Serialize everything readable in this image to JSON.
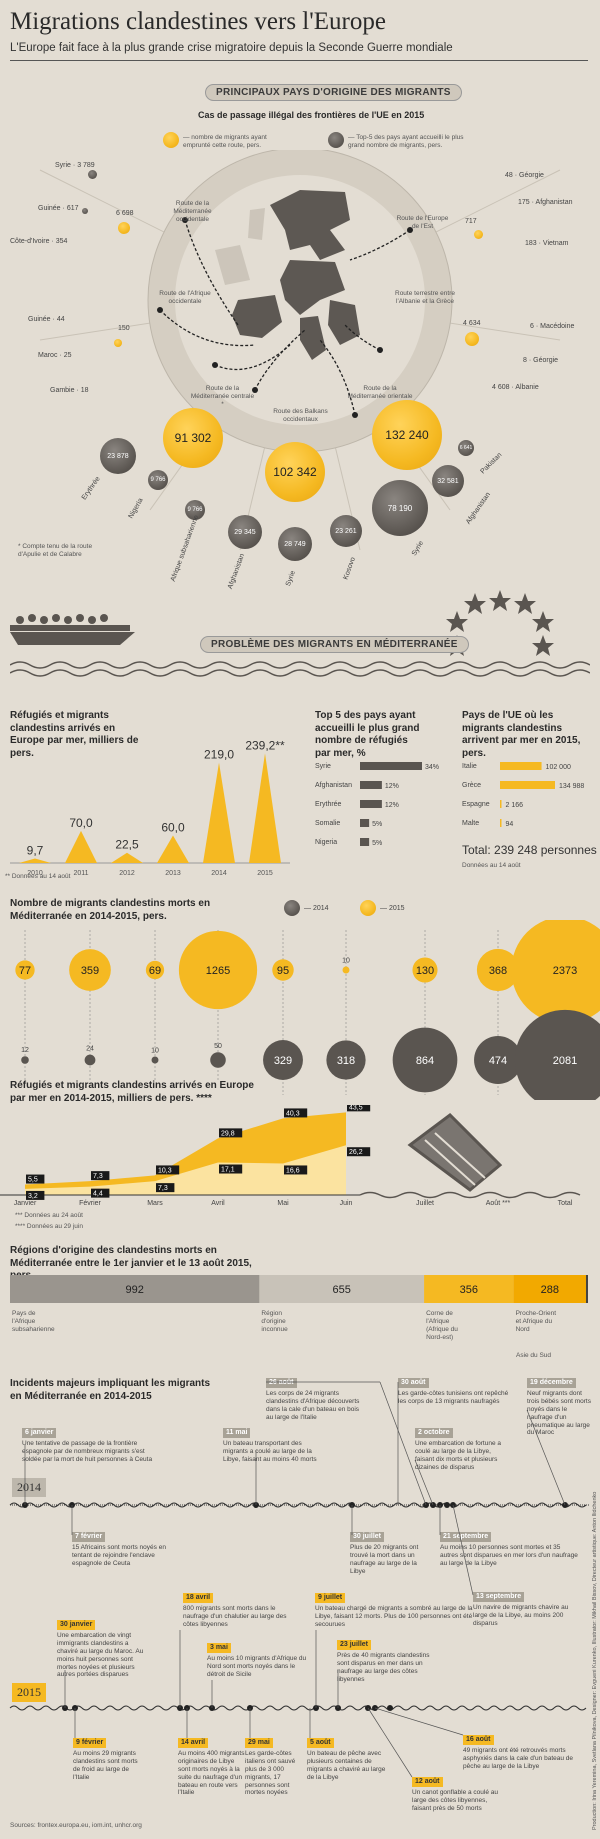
{
  "header": {
    "title": "Migrations clandestines vers l'Europe",
    "subtitle": "L'Europe fait face à la plus grande crise migratoire depuis la Seconde Guerre mondiale"
  },
  "origin": {
    "pill": "PRINCIPAUX PAYS D'ORIGINE DES MIGRANTS",
    "heading": "Cas de passage illégal des frontières de l'UE en 2015",
    "legend_yellow": "— nombre de migrants ayant emprunté cette route, pers.",
    "legend_grey": "— Top-5 des pays ayant accueilli le plus grand nombre de migrants, pers.",
    "footnote": "* Compte tenu de la route d'Apulie et de Calabre",
    "routes": {
      "r1": "Route de la Méditerranée occidentale",
      "r2": "Route de l'Afrique occidentale",
      "r3": "Route de la Méditerranée centrale *",
      "r4": "Route des Balkans occidentaux",
      "r5": "Route de la Méditerranée orientale",
      "r6": "Route terrestre entre l'Albanie et la Grèce",
      "r7": "Route de l'Europe de l'Est"
    },
    "left_countries": [
      {
        "name": "Syrie",
        "value": "3 789"
      },
      {
        "name": "Guinée",
        "value": "617"
      },
      {
        "name": "Côte-d'Ivoire",
        "value": "354"
      },
      {
        "name": "Guinée",
        "value": "44"
      },
      {
        "name": "Maroc",
        "value": "25"
      },
      {
        "name": "Gambie",
        "value": "18"
      }
    ],
    "left_totals": [
      "6 698",
      "150"
    ],
    "right_countries": [
      {
        "name": "Géorgie",
        "value": "48"
      },
      {
        "name": "Afghanistan",
        "value": "175"
      },
      {
        "name": "Vietnam",
        "value": "183"
      },
      {
        "name": "Macédoine",
        "value": "6"
      },
      {
        "name": "Géorgie",
        "value": "8"
      },
      {
        "name": "Albanie",
        "value": "4 608"
      }
    ],
    "right_totals": [
      "717",
      "4 634"
    ],
    "big_bubbles": [
      "91 302",
      "102 342",
      "132 240"
    ],
    "central_countries": [
      {
        "name": "Erythrée",
        "value": "23 878"
      },
      {
        "name": "Nigeria",
        "value": "9 766"
      },
      {
        "name": "Afrique subsaharienne",
        "value": "9 766"
      },
      {
        "name": "Afghanistan",
        "value": "29 345"
      },
      {
        "name": "Syrie",
        "value": "28 749"
      },
      {
        "name": "Kosovo",
        "value": "23 261"
      },
      {
        "name": "Syrie",
        "value": "78 190"
      },
      {
        "name": "Afghanistan",
        "value": "32 581"
      },
      {
        "name": "Pakistan",
        "value": "6 641"
      }
    ]
  },
  "med": {
    "pill": "PROBLÈME DES MIGRANTS EN MÉDITERRANÉE"
  },
  "chart_data": [
    {
      "type": "bar",
      "title": "Réfugiés et migrants clandestins arrivés en Europe par mer, milliers de pers.",
      "categories": [
        "2010",
        "2011",
        "2012",
        "2013",
        "2014",
        "2015"
      ],
      "values": [
        9.7,
        70.0,
        22.5,
        60.0,
        219.0,
        239.2
      ],
      "value_labels": [
        "9,7",
        "70,0",
        "22,5",
        "60,0",
        "219,0",
        "239,2**"
      ],
      "footnote": "** Données au 14 août"
    },
    {
      "type": "bar",
      "title": "Top 5 des pays ayant accueilli le plus grand nombre de réfugiés par mer, %",
      "categories": [
        "Syrie",
        "Afghanistan",
        "Erythrée",
        "Somalie",
        "Nigeria"
      ],
      "values": [
        34,
        12,
        12,
        5,
        5
      ]
    },
    {
      "type": "bar",
      "title": "Pays de l'UE où les migrants clandestins arrivent par mer en 2015, pers.",
      "categories": [
        "Italie",
        "Grèce",
        "Espagne",
        "Malte"
      ],
      "values": [
        102000,
        134988,
        2166,
        94
      ],
      "value_labels": [
        "102 000",
        "134 988",
        "2 166",
        "94"
      ],
      "total": "Total: 239 248 personnes",
      "note": "Données au 14 août"
    },
    {
      "type": "scatter",
      "title": "Nombre de migrants clandestins morts en Méditerranée en 2014-2015, pers.",
      "categories": [
        "Janvier",
        "Février",
        "Mars",
        "Avril",
        "Mai",
        "Juin",
        "Juillet",
        "Août ***",
        "Total"
      ],
      "series": [
        {
          "name": "2015",
          "values": [
            77,
            359,
            69,
            1265,
            95,
            10,
            130,
            368,
            2373
          ]
        },
        {
          "name": "2014",
          "values": [
            12,
            24,
            10,
            50,
            329,
            318,
            864,
            474,
            2081
          ]
        }
      ]
    },
    {
      "type": "area",
      "title": "Réfugiés et migrants clandestins arrivés en Europe par mer en 2014-2015, milliers de pers. ****",
      "categories": [
        "Janvier",
        "Février",
        "Mars",
        "Avril",
        "Mai",
        "Juin"
      ],
      "series": [
        {
          "name": "2014",
          "values": [
            3.2,
            4.4,
            7.3,
            17.1,
            16.6,
            26.2
          ]
        },
        {
          "name": "2015",
          "values": [
            5.5,
            7.3,
            10.3,
            29.8,
            40.3,
            43.5
          ]
        }
      ],
      "footnotes": [
        "*** Données au 24 août",
        "**** Données au 29 juin"
      ]
    },
    {
      "type": "bar",
      "title": "Régions d'origine des clandestins morts en Méditerranée entre le 1er janvier et le 13 août 2015, pers.",
      "categories": [
        "Pays de l'Afrique subsaharienne",
        "Région d'origine inconnue",
        "Corne de l'Afrique (Afrique du Nord-est)",
        "Proche-Orient et Afrique du Nord",
        "Asie du Sud"
      ],
      "values": [
        992,
        655,
        356,
        288,
        8
      ]
    }
  ],
  "timeline": {
    "title": "Incidents majeurs impliquant les migrants en Méditerranée en 2014-2015",
    "year1": "2014",
    "year2": "2015",
    "events_2014_top": [
      {
        "date": "6 janvier",
        "text": "Une tentative de passage de la frontière espagnole par de nombreux migrants s'est soldée par la mort de huit personnes à Ceuta"
      },
      {
        "date": "11 mai",
        "text": "Un bateau transportant des migrants a coulé au large de la Libye, faisant au moins 40 morts"
      },
      {
        "date": "26 août",
        "text": "Les corps de 24 migrants clandestins d'Afrique découverts dans la cale d'un bateau en bois au large de l'Italie"
      },
      {
        "date": "30 août",
        "text": "Les garde-côtes tunisiens ont repêché les corps de 13 migrants naufragés"
      },
      {
        "date": "2 octobre",
        "text": "Une embarcation de fortune a coulé au large de la Libye, faisant dix morts et plusieurs dizaines de disparus"
      },
      {
        "date": "19 décembre",
        "text": "Neuf migrants dont trois bébés sont morts noyés dans le naufrage d'un pneumatique au large du Maroc"
      }
    ],
    "events_2014_bottom": [
      {
        "date": "7 février",
        "text": "15 Africains sont morts noyés en tentant de rejoindre l'enclave espagnole de Ceuta"
      },
      {
        "date": "30 juillet",
        "text": "Plus de 20 migrants ont trouvé la mort dans un naufrage au large de la Libye"
      },
      {
        "date": "21 septembre",
        "text": "Au moins 10 personnes sont mortes et 35 autres sont disparues en mer lors d'un naufrage au large de la Libye"
      },
      {
        "date": "13 septembre",
        "text": "Un navire de migrants chavire au large de la Libye, au moins 200 disparus"
      }
    ],
    "events_2015_top": [
      {
        "date": "30 janvier",
        "text": "Une embarcation de vingt immigrants clandestins a chaviré au large du Maroc. Au moins huit personnes sont mortes noyées et plusieurs autres portées disparues"
      },
      {
        "date": "18 avril",
        "text": "800 migrants sont morts dans le naufrage d'un chalutier au large des côtes libyennes"
      },
      {
        "date": "3 mai",
        "text": "Au moins 10 migrants d'Afrique du Nord sont morts noyés dans le détroit de Sicile"
      },
      {
        "date": "9 juillet",
        "text": "Un bateau chargé de migrants a sombré au large de la Libye, faisant 12 morts. Plus de 100 personnes ont été secourues"
      },
      {
        "date": "23 juillet",
        "text": "Près de 40 migrants clandestins sont disparus en mer dans un naufrage au large des côtes libyennes"
      }
    ],
    "events_2015_bottom": [
      {
        "date": "9 février",
        "text": "Au moins 29 migrants clandestins sont morts de froid au large de l'Italie"
      },
      {
        "date": "14 avril",
        "text": "Au moins 400 migrants originaires de Libye sont morts noyés à la suite du naufrage d'un bateau en route vers l'Italie"
      },
      {
        "date": "29 mai",
        "text": "Les garde-côtes italiens ont sauvé plus de 3 000 migrants, 17 personnes sont mortes noyées"
      },
      {
        "date": "5 août",
        "text": "Un bateau de pêche avec plusieurs centaines de migrants a chaviré au large de la Libye"
      },
      {
        "date": "16 août",
        "text": "49 migrants ont été retrouvés morts asphyxiés dans la cale d'un bateau de pêche au large de la Libye"
      },
      {
        "date": "12 août",
        "text": "Un canot gonflable a coulé au large des côtes libyennes, faisant près de 50 morts"
      }
    ],
    "sources": "Sources: frontex.europa.eu, iom.int, unhcr.org",
    "credits": "Production: Irina Yeremina, Svetlana Pilnikova, Designer: Evgueni Kurenko, Illustrator: Mikhail Bissov, Directeur artistique: Anton Ilidchenko"
  },
  "colors": {
    "background": "#e3ddd3",
    "accent": "#f5b922",
    "dark": "#5a5550"
  }
}
